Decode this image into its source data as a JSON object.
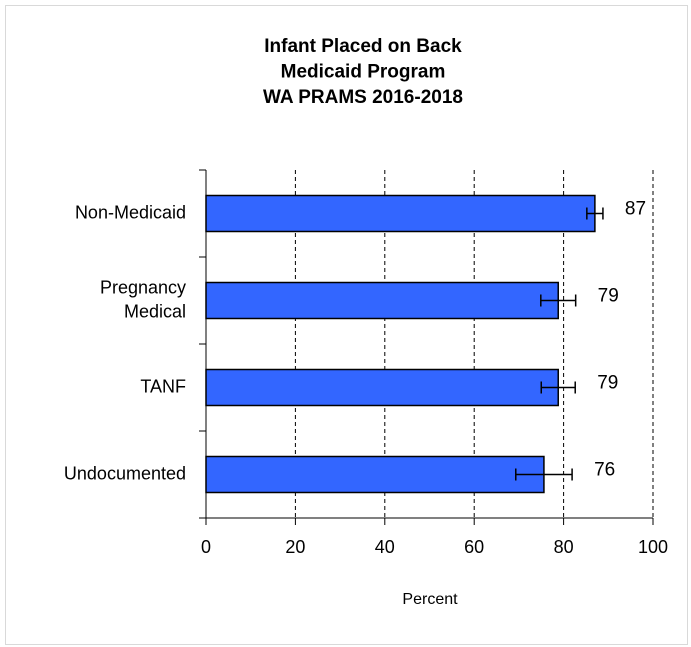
{
  "chart_data": {
    "type": "hbar_error",
    "title": [
      "Infant Placed on Back",
      "Medicaid Program",
      "WA PRAMS 2016-2018"
    ],
    "xlabel": "Percent",
    "categories": [
      "Non-Medicaid",
      "Pregnancy Medical",
      "TANF",
      "Undocumented"
    ],
    "values": [
      87.0,
      78.8,
      78.8,
      75.6
    ],
    "value_labels": [
      "87",
      "79",
      "79",
      "76"
    ],
    "errors": [
      1.8,
      3.9,
      3.8,
      6.3
    ],
    "color": "#3366ff",
    "xlim": [
      0,
      100
    ],
    "xticks": [
      0,
      20,
      40,
      60,
      80,
      100
    ],
    "grid": true
  }
}
